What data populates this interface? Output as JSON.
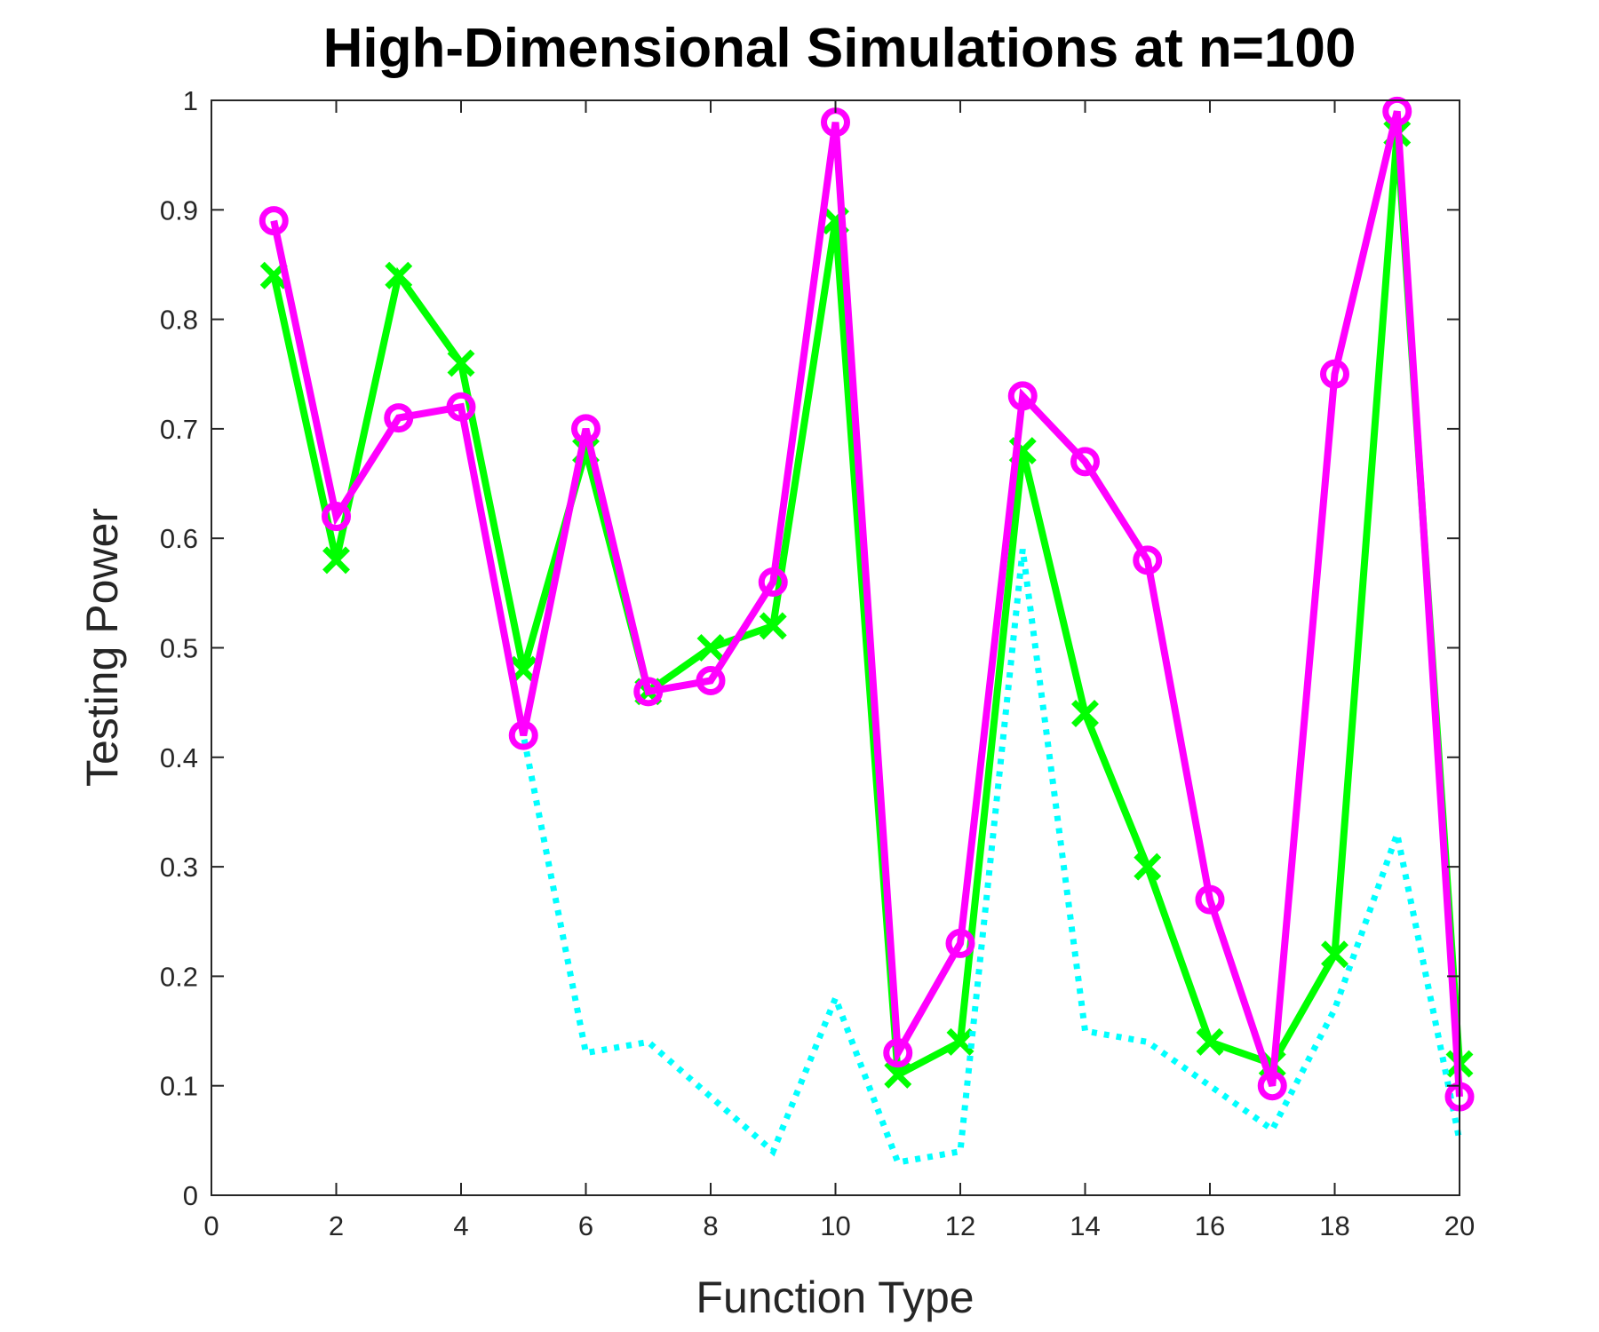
{
  "chart_data": {
    "type": "line",
    "title": "High-Dimensional Simulations at n=100",
    "xlabel": "Function Type",
    "ylabel": "Testing Power",
    "xlim": [
      0,
      20
    ],
    "ylim": [
      0,
      1
    ],
    "xticks": [
      "0",
      "2",
      "4",
      "6",
      "8",
      "10",
      "12",
      "14",
      "16",
      "18",
      "20"
    ],
    "yticks": [
      "0",
      "0.1",
      "0.2",
      "0.3",
      "0.4",
      "0.5",
      "0.6",
      "0.7",
      "0.8",
      "0.9",
      "1"
    ],
    "grid": false,
    "legend": "none",
    "x": [
      1,
      2,
      3,
      4,
      5,
      6,
      7,
      8,
      9,
      10,
      11,
      12,
      13,
      14,
      15,
      16,
      17,
      18,
      19,
      20
    ],
    "series": [
      {
        "color": "#00ff00",
        "style": "solid",
        "marker": "x",
        "values": [
          0.84,
          0.58,
          0.84,
          0.76,
          0.48,
          0.68,
          0.46,
          0.5,
          0.52,
          0.89,
          0.11,
          0.14,
          0.68,
          0.44,
          0.3,
          0.14,
          0.12,
          0.22,
          0.97,
          0.12
        ]
      },
      {
        "color": "#00ffff",
        "style": "dotted",
        "marker": "none",
        "values": [
          0.89,
          0.62,
          0.71,
          0.72,
          0.42,
          0.13,
          0.14,
          0.09,
          0.04,
          0.18,
          0.03,
          0.04,
          0.59,
          0.15,
          0.14,
          0.1,
          0.06,
          0.17,
          0.33,
          0.05
        ]
      },
      {
        "color": "#ff00ff",
        "style": "solid",
        "marker": "o",
        "values": [
          0.89,
          0.62,
          0.71,
          0.72,
          0.42,
          0.7,
          0.46,
          0.47,
          0.56,
          0.98,
          0.13,
          0.23,
          0.73,
          0.67,
          0.58,
          0.27,
          0.1,
          0.75,
          0.99,
          0.09
        ]
      }
    ]
  }
}
